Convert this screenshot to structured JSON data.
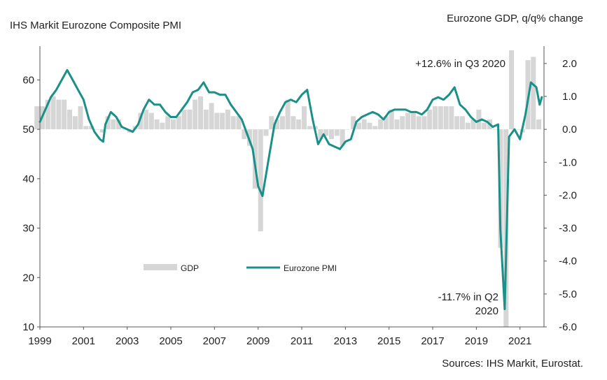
{
  "chart_data": {
    "type": "line",
    "title_left": "IHS Markit Eurozone Composite PMI",
    "title_right": "Eurozone GDP, q/q% change",
    "source": "Sources: IHS Markit, Eurostat.",
    "x_ticks": [
      "1999",
      "2001",
      "2003",
      "2005",
      "2007",
      "2009",
      "2011",
      "2013",
      "2015",
      "2017",
      "2019",
      "2021"
    ],
    "y_left": {
      "ticks": [
        "10",
        "20",
        "30",
        "40",
        "50",
        "60"
      ],
      "lim": [
        10,
        66
      ]
    },
    "y_right": {
      "ticks": [
        "-6.0",
        "-5.0",
        "-4.0",
        "-3.0",
        "-2.0",
        "-1.0",
        "0.0",
        "1.0",
        "2.0"
      ],
      "lim": [
        -6.0,
        2.4
      ]
    },
    "legend": {
      "gdp": "GDP",
      "pmi": "Eurozone PMI"
    },
    "annotations": {
      "high": "+12.6% in Q3 2020",
      "low_1": "-11.7% in Q2",
      "low_2": "2020"
    },
    "colors": {
      "pmi": "#1a9088",
      "gdp": "#d6d6d6"
    },
    "gdp_series": {
      "name": "GDP",
      "x": [
        1998.875,
        1999.125,
        1999.375,
        1999.625,
        1999.875,
        2000.125,
        2000.375,
        2000.625,
        2000.875,
        2001.125,
        2001.375,
        2001.625,
        2001.875,
        2002.125,
        2002.375,
        2002.625,
        2002.875,
        2003.125,
        2003.375,
        2003.625,
        2003.875,
        2004.125,
        2004.375,
        2004.625,
        2004.875,
        2005.125,
        2005.375,
        2005.625,
        2005.875,
        2006.125,
        2006.375,
        2006.625,
        2006.875,
        2007.125,
        2007.375,
        2007.625,
        2007.875,
        2008.125,
        2008.375,
        2008.625,
        2008.875,
        2009.125,
        2009.375,
        2009.625,
        2009.875,
        2010.125,
        2010.375,
        2010.625,
        2010.875,
        2011.125,
        2011.375,
        2011.625,
        2011.875,
        2012.125,
        2012.375,
        2012.625,
        2012.875,
        2013.125,
        2013.375,
        2013.625,
        2013.875,
        2014.125,
        2014.375,
        2014.625,
        2014.875,
        2015.125,
        2015.375,
        2015.625,
        2015.875,
        2016.125,
        2016.375,
        2016.625,
        2016.875,
        2017.125,
        2017.375,
        2017.625,
        2017.875,
        2018.125,
        2018.375,
        2018.625,
        2018.875,
        2019.125,
        2019.375,
        2019.625,
        2019.875,
        2020.125,
        2020.375,
        2020.625,
        2020.875,
        2021.125,
        2021.375,
        2021.625,
        2021.875
      ],
      "values": [
        0.7,
        0.7,
        0.9,
        1.0,
        0.9,
        0.9,
        0.6,
        0.4,
        0.7,
        0.1,
        0.1,
        0.0,
        -0.1,
        0.4,
        0.3,
        0.3,
        0.0,
        -0.1,
        0.1,
        0.5,
        0.6,
        0.5,
        0.3,
        0.2,
        0.4,
        0.3,
        0.4,
        0.6,
        0.6,
        0.9,
        1.0,
        0.6,
        0.8,
        0.5,
        0.5,
        0.6,
        0.4,
        0.4,
        -0.3,
        -0.5,
        -1.8,
        -3.1,
        -0.2,
        0.4,
        0.3,
        0.4,
        0.9,
        0.4,
        0.3,
        0.7,
        0.1,
        0.1,
        -0.3,
        -0.2,
        -0.3,
        -0.2,
        -0.5,
        0.0,
        0.4,
        0.2,
        0.3,
        0.2,
        0.1,
        0.3,
        0.4,
        0.6,
        0.3,
        0.4,
        0.5,
        0.5,
        0.4,
        0.4,
        0.6,
        0.7,
        0.7,
        0.7,
        0.7,
        0.4,
        0.4,
        0.2,
        0.3,
        0.6,
        0.2,
        0.3,
        0.0,
        -3.6,
        -6.0,
        2.4,
        0.0,
        -0.1,
        2.1,
        2.2,
        0.3
      ]
    },
    "pmi_series": {
      "name": "Eurozone PMI",
      "x": [
        1999.0,
        1999.25,
        1999.5,
        1999.75,
        2000.0,
        2000.25,
        2000.5,
        2000.75,
        2001.0,
        2001.25,
        2001.5,
        2001.75,
        2001.9,
        2002.0,
        2002.25,
        2002.5,
        2002.75,
        2003.0,
        2003.25,
        2003.5,
        2003.75,
        2004.0,
        2004.25,
        2004.5,
        2004.75,
        2005.0,
        2005.25,
        2005.5,
        2005.75,
        2006.0,
        2006.25,
        2006.5,
        2006.75,
        2007.0,
        2007.25,
        2007.5,
        2007.75,
        2008.0,
        2008.25,
        2008.5,
        2008.75,
        2009.0,
        2009.2,
        2009.5,
        2009.75,
        2010.0,
        2010.25,
        2010.5,
        2010.75,
        2011.0,
        2011.25,
        2011.5,
        2011.75,
        2012.0,
        2012.25,
        2012.5,
        2012.75,
        2013.0,
        2013.25,
        2013.5,
        2013.75,
        2014.0,
        2014.25,
        2014.5,
        2014.75,
        2015.0,
        2015.25,
        2015.5,
        2015.75,
        2016.0,
        2016.25,
        2016.5,
        2016.75,
        2017.0,
        2017.25,
        2017.5,
        2017.75,
        2018.0,
        2018.25,
        2018.5,
        2018.75,
        2019.0,
        2019.25,
        2019.5,
        2019.75,
        2020.0,
        2020.1,
        2020.3,
        2020.5,
        2020.75,
        2021.0,
        2021.25,
        2021.5,
        2021.75,
        2021.9,
        2022.0
      ],
      "values": [
        51.5,
        54.0,
        56.5,
        58.0,
        60.0,
        62.0,
        60.0,
        58.0,
        56.0,
        52.0,
        49.5,
        48.0,
        47.5,
        51.0,
        53.5,
        52.5,
        50.5,
        50.0,
        49.5,
        51.0,
        54.0,
        56.0,
        55.0,
        55.0,
        53.5,
        52.5,
        52.5,
        54.0,
        55.5,
        57.5,
        58.0,
        59.5,
        57.5,
        57.5,
        57.0,
        57.0,
        55.0,
        53.5,
        52.0,
        49.0,
        46.0,
        38.5,
        36.5,
        44.5,
        51.0,
        53.5,
        55.5,
        56.0,
        55.5,
        57.0,
        58.0,
        52.0,
        47.0,
        49.0,
        47.0,
        46.5,
        46.0,
        47.5,
        48.0,
        51.5,
        52.5,
        53.0,
        53.5,
        53.0,
        52.0,
        53.5,
        54.0,
        54.0,
        54.0,
        53.5,
        53.5,
        53.0,
        54.0,
        56.0,
        56.5,
        56.0,
        57.0,
        58.5,
        55.0,
        54.0,
        52.5,
        51.5,
        52.0,
        51.5,
        50.5,
        51.0,
        29.7,
        13.6,
        48.5,
        50.0,
        48.0,
        53.0,
        59.5,
        58.5,
        55.0,
        56.5
      ]
    }
  }
}
